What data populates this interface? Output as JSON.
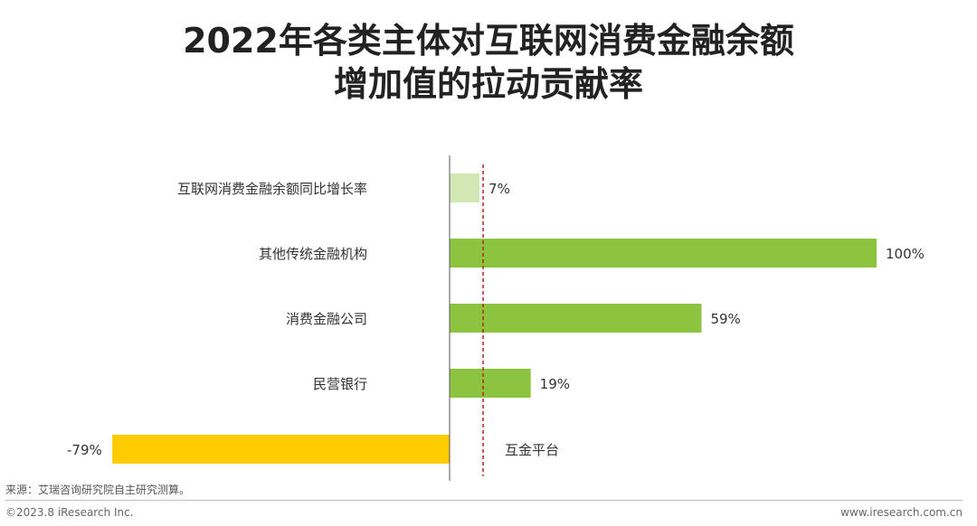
{
  "title_line1": "2022年各类主体对互联网消费金融余额",
  "title_line2": "增加值的拉动贡献率",
  "chart_data": {
    "type": "bar",
    "orientation": "horizontal",
    "categories": [
      "互联网消费金融余额同比增长率",
      "其他传统金融机构",
      "消费金融公司",
      "民营银行",
      "互金平台"
    ],
    "values": [
      7,
      100,
      59,
      19,
      -79
    ],
    "value_labels": [
      "7%",
      "100%",
      "59%",
      "19%",
      "-79%"
    ],
    "unit": "%",
    "colors": [
      "#d2e8b4",
      "#8cc43f",
      "#8cc43f",
      "#8cc43f",
      "#ffcc00"
    ],
    "reference_line": {
      "value": 7,
      "style": "dashed",
      "color": "#b3261e"
    },
    "grid": false,
    "legend": "none"
  },
  "source": "来源：艾瑞咨询研究院自主研究测算。",
  "copyright": "©2023.8 iResearch Inc.",
  "website": "www.iresearch.com.cn"
}
